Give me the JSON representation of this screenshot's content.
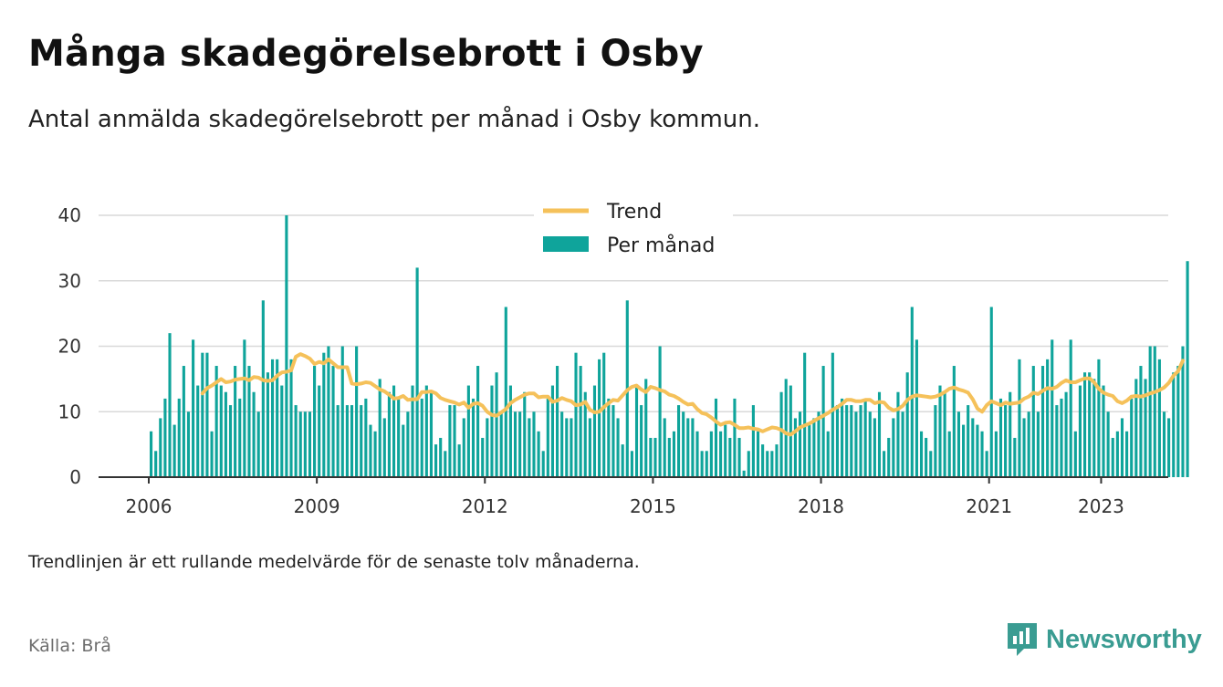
{
  "header": {
    "title": "Många skadegörelsebrott i Osby",
    "subtitle": "Antal anmälda skadegörelsebrott per månad i Osby kommun."
  },
  "footer": {
    "note": "Trendlinjen är ett rullande medelvärde för de senaste tolv månaderna.",
    "source": "Källa: Brå",
    "brand": "Newsworthy"
  },
  "colors": {
    "bars": "#0fa49b",
    "trend": "#f5c15a",
    "brand": "#3a9c92",
    "grid": "#d9d9d9",
    "axis": "#333333"
  },
  "chart_data": {
    "type": "bar",
    "x_start": "2006-01",
    "x_ticks": [
      "2006",
      "2009",
      "2012",
      "2015",
      "2018",
      "2021",
      "2023"
    ],
    "ylim": [
      0,
      40
    ],
    "y_ticks": [
      0,
      10,
      20,
      30,
      40
    ],
    "legend": [
      "Trend",
      "Per månad"
    ],
    "legend_position": "top-center",
    "grid": true,
    "series": [
      {
        "name": "Per månad",
        "type": "bar",
        "values": [
          7,
          4,
          9,
          12,
          22,
          8,
          12,
          17,
          10,
          21,
          14,
          19,
          19,
          7,
          17,
          14,
          13,
          11,
          17,
          12,
          21,
          17,
          13,
          10,
          27,
          16,
          18,
          18,
          14,
          40,
          18,
          11,
          10,
          10,
          10,
          17,
          14,
          19,
          20,
          17,
          11,
          20,
          11,
          11,
          20,
          11,
          12,
          8,
          7,
          15,
          9,
          13,
          14,
          12,
          8,
          10,
          14,
          32,
          12,
          14,
          13,
          5,
          6,
          4,
          11,
          11,
          5,
          9,
          14,
          12,
          17,
          6,
          9,
          14,
          16,
          10,
          26,
          14,
          10,
          10,
          13,
          9,
          10,
          7,
          4,
          12,
          14,
          17,
          10,
          9,
          9,
          19,
          17,
          13,
          9,
          14,
          18,
          19,
          12,
          11,
          9,
          5,
          27,
          4,
          14,
          11,
          15,
          6,
          6,
          20,
          9,
          6,
          7,
          11,
          10,
          9,
          9,
          7,
          4,
          4,
          7,
          12,
          7,
          8,
          6,
          12,
          6,
          1,
          4,
          11,
          7,
          5,
          4,
          4,
          5,
          13,
          15,
          14,
          9,
          10,
          19,
          8,
          9,
          10,
          17,
          7,
          19,
          11,
          12,
          11,
          11,
          10,
          11,
          12,
          10,
          9,
          13,
          4,
          6,
          9,
          13,
          10,
          16,
          26,
          21,
          7,
          6,
          4,
          11,
          14,
          13,
          7,
          17,
          10,
          8,
          11,
          9,
          8,
          7,
          4,
          26,
          7,
          12,
          11,
          13,
          6,
          18,
          9,
          10,
          17,
          10,
          17,
          18,
          21,
          11,
          12,
          13,
          21,
          7,
          14,
          16,
          16,
          15,
          18,
          14,
          10,
          6,
          7,
          9,
          7,
          12,
          15,
          17,
          15,
          20,
          20,
          18,
          10,
          9,
          16,
          17,
          20,
          33
        ]
      },
      {
        "name": "Trend",
        "type": "line",
        "start": "2006-12",
        "values": [
          12.8,
          13.6,
          14.0,
          14.5,
          15.0,
          14.5,
          14.6,
          14.9,
          15.0,
          15.1,
          14.8,
          15.3,
          15.2,
          14.8,
          14.7,
          14.8,
          15.5,
          16.0,
          16.1,
          16.3,
          18.4,
          18.8,
          18.5,
          18.1,
          17.3,
          17.6,
          17.4,
          18.0,
          17.4,
          16.8,
          16.8,
          16.8,
          14.3,
          14.2,
          14.3,
          14.5,
          14.4,
          13.9,
          13.4,
          13.1,
          12.6,
          12.0,
          12.1,
          12.4,
          11.8,
          11.9,
          11.9,
          13.0,
          13.0,
          13.1,
          12.8,
          12.1,
          11.8,
          11.6,
          11.4,
          11.1,
          11.4,
          10.6,
          11.2,
          11.3,
          10.9,
          10.0,
          9.5,
          9.4,
          9.9,
          10.4,
          11.3,
          11.8,
          12.2,
          12.6,
          12.8,
          12.8,
          12.2,
          12.3,
          12.3,
          11.5,
          11.7,
          12.1,
          11.8,
          11.6,
          11.0,
          11.1,
          11.5,
          10.3,
          9.9,
          10.0,
          10.7,
          11.3,
          11.8,
          11.7,
          12.5,
          13.3,
          13.8,
          14.0,
          13.4,
          13.0,
          13.8,
          13.6,
          13.3,
          13.1,
          12.6,
          12.4,
          12.0,
          11.5,
          11.1,
          11.2,
          10.4,
          9.8,
          9.6,
          9.1,
          8.5,
          8.0,
          8.3,
          8.4,
          8.0,
          7.5,
          7.5,
          7.6,
          7.4,
          7.3,
          7.0,
          7.3,
          7.6,
          7.5,
          7.2,
          6.7,
          6.5,
          7.0,
          7.6,
          7.9,
          8.2,
          8.6,
          9.0,
          9.4,
          9.8,
          10.3,
          10.7,
          11.2,
          11.8,
          11.8,
          11.6,
          11.6,
          11.8,
          11.8,
          11.3,
          11.5,
          11.4,
          10.6,
          10.2,
          10.4,
          10.9,
          11.8,
          12.3,
          12.5,
          12.4,
          12.3,
          12.2,
          12.3,
          12.6,
          13.0,
          13.5,
          13.7,
          13.4,
          13.2,
          12.9,
          11.9,
          10.5,
          10.0,
          11.0,
          11.6,
          11.3,
          11.0,
          11.4,
          11.2,
          11.3,
          11.4,
          12.0,
          12.3,
          12.9,
          12.7,
          13.2,
          13.6,
          13.5,
          13.8,
          14.4,
          14.8,
          14.5,
          14.5,
          14.8,
          15.1,
          15.1,
          14.5,
          13.5,
          12.9,
          12.6,
          12.4,
          11.6,
          11.3,
          11.7,
          12.3,
          12.4,
          12.3,
          12.5,
          12.8,
          13.0,
          13.3,
          13.7,
          14.4,
          15.5,
          16.2,
          17.8
        ]
      }
    ]
  }
}
